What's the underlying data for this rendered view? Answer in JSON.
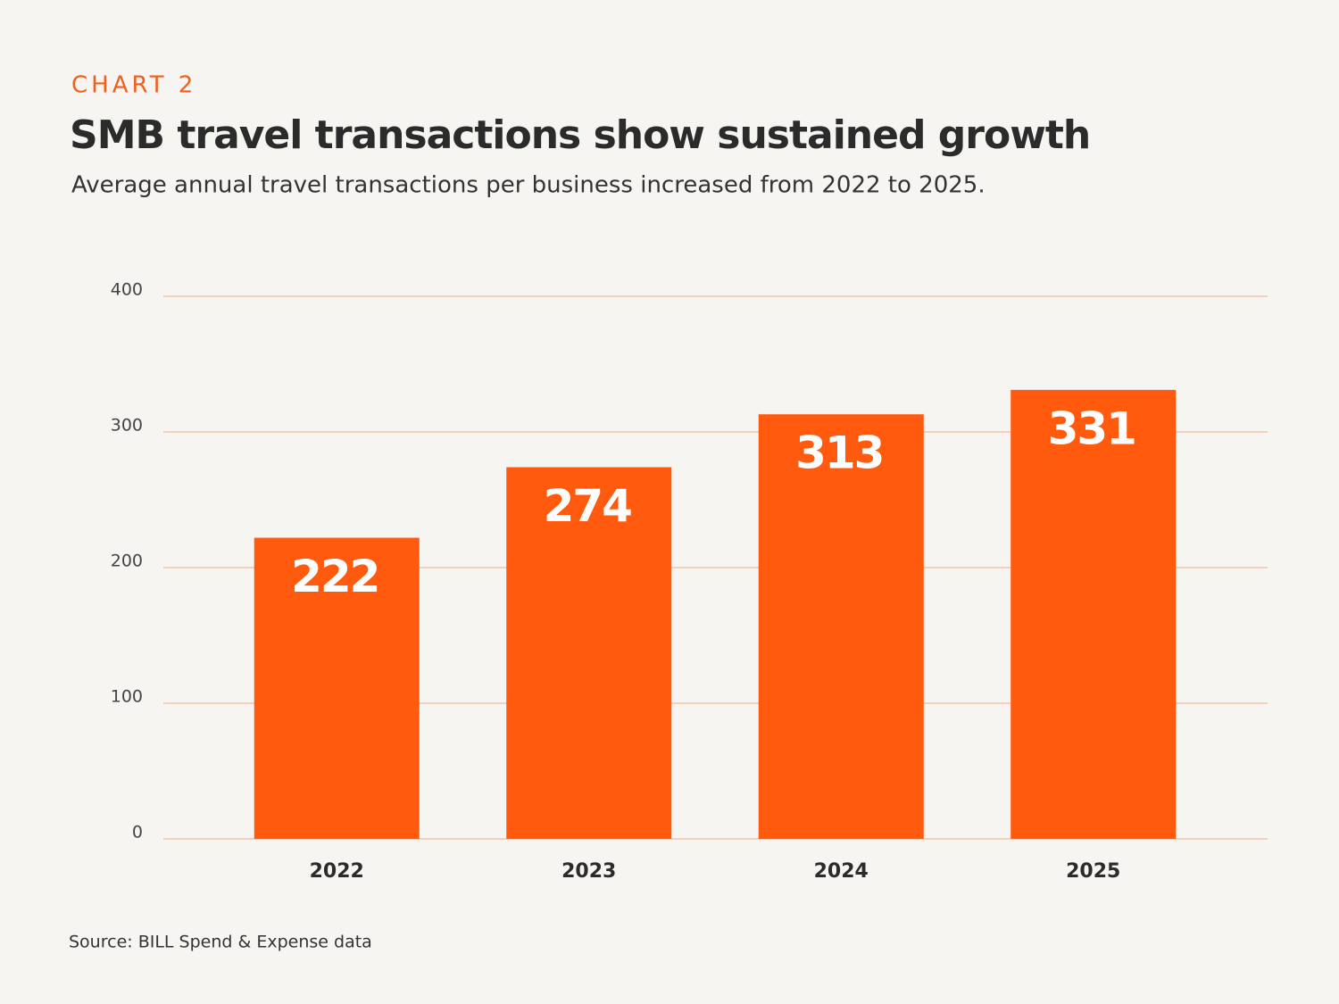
{
  "chart_data": {
    "type": "bar",
    "kicker": "CHART 2",
    "title": "SMB travel transactions show sustained growth",
    "subtitle": "Average annual travel transactions per business increased from 2022 to 2025.",
    "source": "Source: BILL Spend & Expense data",
    "categories": [
      "2022",
      "2023",
      "2024",
      "2025"
    ],
    "values": [
      222,
      274,
      313,
      331
    ],
    "color": "#ff5a0e",
    "ylim": [
      0,
      400
    ],
    "yticks": [
      0,
      100,
      200,
      300,
      400
    ],
    "grid": true
  }
}
